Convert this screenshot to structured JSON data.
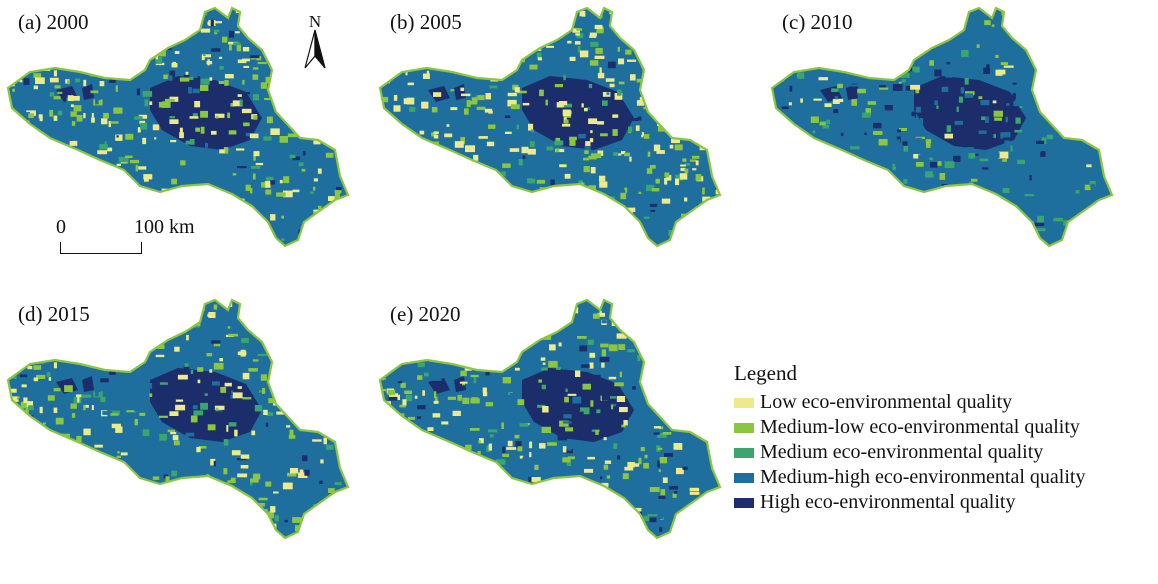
{
  "figure": {
    "panels": [
      {
        "label": "(a) 2000",
        "year": 2000,
        "lowish_share": "high"
      },
      {
        "label": "(b) 2005",
        "year": 2005,
        "lowish_share": "high"
      },
      {
        "label": "(c) 2010",
        "year": 2010,
        "lowish_share": "low"
      },
      {
        "label": "(d) 2015",
        "year": 2015,
        "lowish_share": "medium"
      },
      {
        "label": "(e) 2020",
        "year": 2020,
        "lowish_share": "medium"
      }
    ],
    "north_arrow": {
      "letter": "N"
    },
    "scale_bar": {
      "start": "0",
      "end": "100 km"
    },
    "legend": {
      "title": "Legend",
      "items": [
        {
          "label": "Low eco-environmental quality",
          "color": "#ecea8a"
        },
        {
          "label": "Medium-low eco-environmental quality",
          "color": "#8cc63f"
        },
        {
          "label": "Medium eco-environmental quality",
          "color": "#3aa66e"
        },
        {
          "label": "Medium-high eco-environmental quality",
          "color": "#1e6f9e"
        },
        {
          "label": "High eco-environmental quality",
          "color": "#1b2d6b"
        }
      ]
    }
  }
}
